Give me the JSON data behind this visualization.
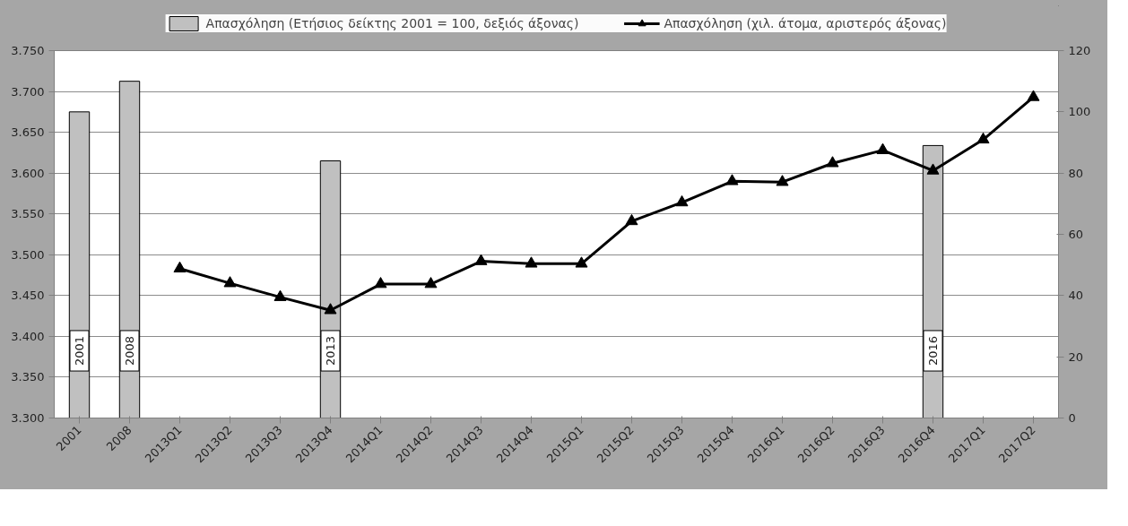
{
  "chart_data": {
    "type": "bar",
    "categories": [
      "2001",
      "2008",
      "2013Q1",
      "2013Q2",
      "2013Q3",
      "2013Q4",
      "2014Q1",
      "2014Q2",
      "2014Q3",
      "2014Q4",
      "2015Q1",
      "2015Q2",
      "2015Q3",
      "2015Q4",
      "2016Q1",
      "2016Q2",
      "2016Q3",
      "2016Q4",
      "2017Q1",
      "2017Q2"
    ],
    "series": [
      {
        "name": "Απασχόληση (Ετήσιος δείκτης 2001 = 100, δεξιός άξονας)",
        "axis": "y2",
        "color": "#c0c0c0",
        "values": [
          100,
          110,
          null,
          null,
          null,
          84,
          null,
          null,
          null,
          null,
          null,
          null,
          null,
          null,
          null,
          null,
          null,
          89,
          null,
          null
        ]
      },
      {
        "name": "Απασχόληση (χιλ. άτομα, αριστερός άξονας)",
        "type": "line",
        "color": "#000000",
        "marker": "triangle",
        "values": [
          null,
          null,
          3483,
          3465,
          3448,
          3432,
          3464,
          3464,
          3492,
          3489,
          3489,
          3541,
          3564,
          3590,
          3589,
          3612,
          3628,
          3603,
          3641,
          3693
        ]
      }
    ],
    "ylim": [
      3300,
      3750
    ],
    "yticks": [
      {
        "value": 3300,
        "label": "3.300"
      },
      {
        "value": 3350,
        "label": "3.350"
      },
      {
        "value": 3400,
        "label": "3.400"
      },
      {
        "value": 3450,
        "label": "3.450"
      },
      {
        "value": 3500,
        "label": "3.500"
      },
      {
        "value": 3550,
        "label": "3.550"
      },
      {
        "value": 3600,
        "label": "3.600"
      },
      {
        "value": 3650,
        "label": "3.650"
      },
      {
        "value": 3700,
        "label": "3.700"
      },
      {
        "value": 3750,
        "label": "3.750"
      }
    ],
    "y2lim": [
      0,
      120
    ],
    "y2ticks": [
      0,
      20,
      40,
      60,
      80,
      100,
      120
    ],
    "annotations": [
      "2001",
      "2008",
      "2013",
      "2016"
    ],
    "grid": "y",
    "legend": "top",
    "line_style": "solid"
  }
}
